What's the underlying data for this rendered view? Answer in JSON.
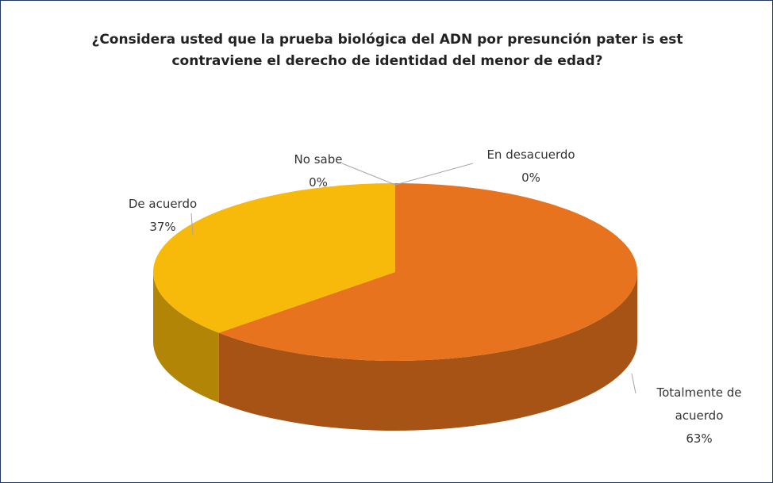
{
  "chart_data": {
    "type": "pie",
    "title": "¿Considera usted que la prueba biológica del ADN por presunción pater is est contraviene el derecho de identidad del menor de edad?",
    "categories": [
      "Totalmente de acuerdo",
      "De acuerdo",
      "No sabe",
      "En desacuerdo"
    ],
    "values": [
      63,
      37,
      0,
      0
    ],
    "value_labels": [
      "63%",
      "37%",
      "0%",
      "0%"
    ],
    "colors": [
      "#e8731f",
      "#f7b90a",
      "#a5a5a5",
      "#5b9bd5"
    ]
  }
}
